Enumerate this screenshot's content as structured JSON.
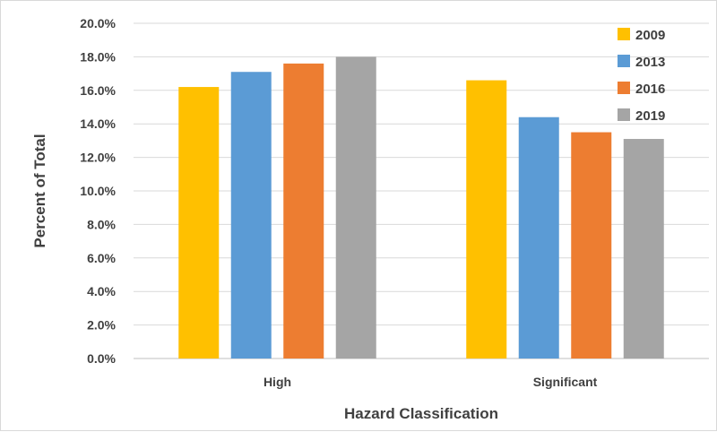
{
  "chart_data": {
    "type": "bar",
    "categories": [
      "High",
      "Significant"
    ],
    "series": [
      {
        "name": "2009",
        "color": "#FFC000",
        "values": [
          16.2,
          16.6
        ]
      },
      {
        "name": "2013",
        "color": "#5B9BD5",
        "values": [
          17.1,
          14.4
        ]
      },
      {
        "name": "2016",
        "color": "#ED7D31",
        "values": [
          17.6,
          13.5
        ]
      },
      {
        "name": "2019",
        "color": "#A5A5A5",
        "values": [
          18.0,
          13.1
        ]
      }
    ],
    "xlabel": "Hazard Classification",
    "ylabel": "Percent of Total",
    "ylim": [
      0,
      20
    ],
    "yticks": [
      "0.0%",
      "2.0%",
      "4.0%",
      "6.0%",
      "8.0%",
      "10.0%",
      "12.0%",
      "14.0%",
      "16.0%",
      "18.0%",
      "20.0%"
    ],
    "grid": true,
    "legend_position": "top-right"
  }
}
